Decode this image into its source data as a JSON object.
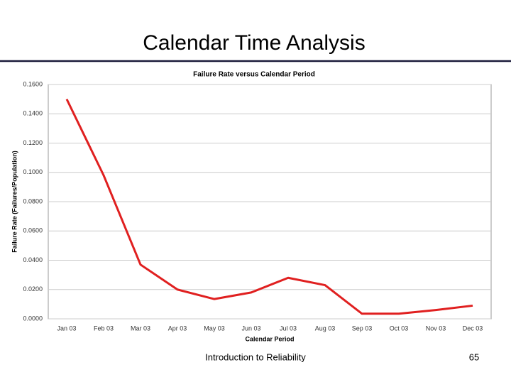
{
  "slide_title": "Calendar Time Analysis",
  "chart_data": {
    "type": "line",
    "title": "Failure Rate versus Calendar Period",
    "x_label": "Calendar Period",
    "y_label": "Failure Rate (Failures/Population)",
    "categories": [
      "Jan 03",
      "Feb 03",
      "Mar 03",
      "Apr 03",
      "May 03",
      "Jun 03",
      "Jul 03",
      "Aug 03",
      "Sep 03",
      "Oct 03",
      "Nov 03",
      "Dec 03"
    ],
    "values": [
      0.15,
      0.098,
      0.037,
      0.02,
      0.0135,
      0.018,
      0.028,
      0.023,
      0.0035,
      0.0035,
      0.006,
      0.009
    ],
    "color": "#e02020",
    "ylim": [
      0,
      0.16
    ],
    "yticks": [
      {
        "value": 0,
        "label": "0.0000"
      },
      {
        "value": 0.02,
        "label": "0.0200"
      },
      {
        "value": 0.04,
        "label": "0.0400"
      },
      {
        "value": 0.06,
        "label": "0.0600"
      },
      {
        "value": 0.08,
        "label": "0.0800"
      },
      {
        "value": 0.1,
        "label": "0.1000"
      },
      {
        "value": 0.12,
        "label": "0.1200"
      },
      {
        "value": 0.14,
        "label": "0.1400"
      },
      {
        "value": 0.16,
        "label": "0.1600"
      }
    ],
    "grid": true
  },
  "footer": {
    "text": "Introduction to Reliability",
    "page": "65"
  }
}
